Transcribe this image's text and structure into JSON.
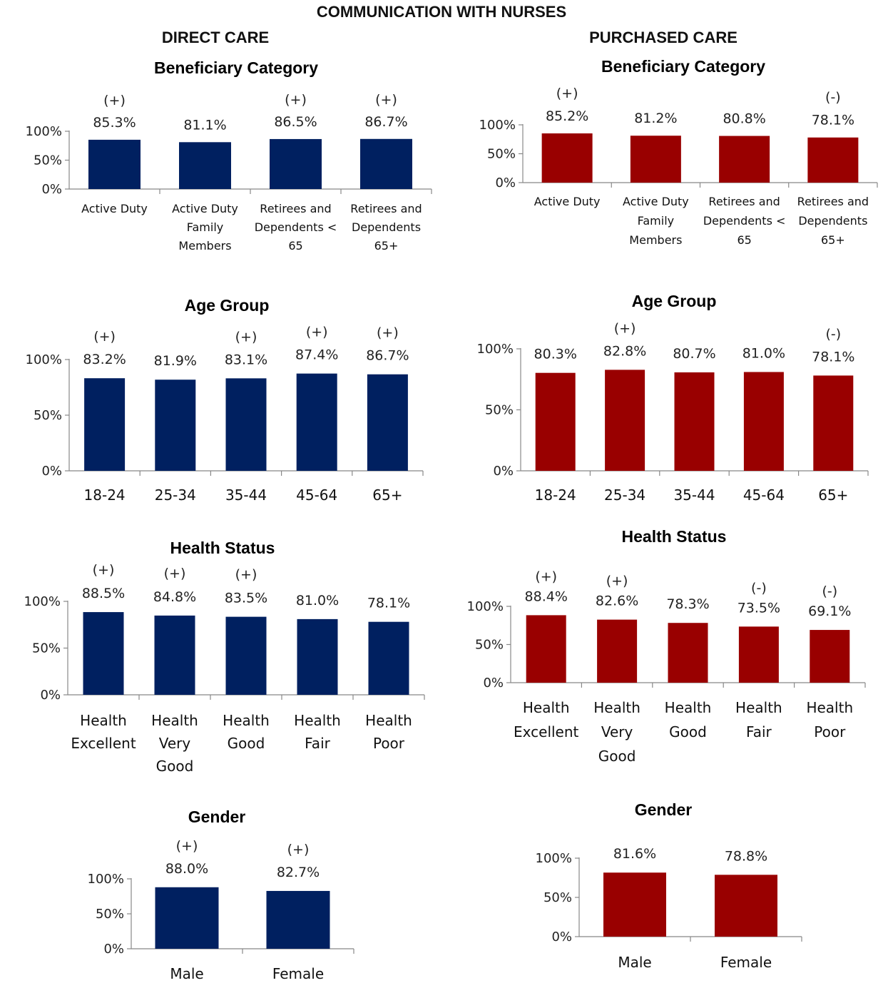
{
  "title": "COMMUNICATION WITH NURSES",
  "columns": [
    "DIRECT CARE",
    "PURCHASED CARE"
  ],
  "colors": {
    "direct": "#002060",
    "purchased": "#990000"
  },
  "chart_data": [
    {
      "type": "bar",
      "group": "DIRECT CARE",
      "title": "Beneficiary Category",
      "categories": [
        "Active Duty",
        "Active Duty Family Members",
        "Retirees and Dependents < 65",
        "Retirees and Dependents 65+"
      ],
      "values": [
        85.3,
        81.1,
        86.5,
        86.7
      ],
      "labels": [
        "85.3%",
        "81.1%",
        "86.5%",
        "86.7%"
      ],
      "significance": [
        "(+)",
        "",
        "(+)",
        "(+)"
      ],
      "yticks": [
        "100%",
        "50%",
        "0%"
      ],
      "ylim": [
        0,
        100
      ],
      "grid": false
    },
    {
      "type": "bar",
      "group": "PURCHASED CARE",
      "title": "Beneficiary Category",
      "categories": [
        "Active Duty",
        "Active Duty Family Members",
        "Retirees and Dependents < 65",
        "Retirees and Dependents 65+"
      ],
      "values": [
        85.2,
        81.2,
        80.8,
        78.1
      ],
      "labels": [
        "85.2%",
        "81.2%",
        "80.8%",
        "78.1%"
      ],
      "significance": [
        "(+)",
        "",
        "",
        "(-)"
      ],
      "yticks": [
        "100%",
        "50%",
        "0%"
      ],
      "ylim": [
        0,
        100
      ],
      "grid": false
    },
    {
      "type": "bar",
      "group": "DIRECT CARE",
      "title": "Age Group",
      "categories": [
        "18-24",
        "25-34",
        "35-44",
        "45-64",
        "65+"
      ],
      "values": [
        83.2,
        81.9,
        83.1,
        87.4,
        86.7
      ],
      "labels": [
        "83.2%",
        "81.9%",
        "83.1%",
        "87.4%",
        "86.7%"
      ],
      "significance": [
        "(+)",
        "",
        "(+)",
        "(+)",
        "(+)"
      ],
      "yticks": [
        "100%",
        "50%",
        "0%"
      ],
      "ylim": [
        0,
        100
      ],
      "grid": false
    },
    {
      "type": "bar",
      "group": "PURCHASED CARE",
      "title": "Age Group",
      "categories": [
        "18-24",
        "25-34",
        "35-44",
        "45-64",
        "65+"
      ],
      "values": [
        80.3,
        82.8,
        80.7,
        81.0,
        78.1
      ],
      "labels": [
        "80.3%",
        "82.8%",
        "80.7%",
        "81.0%",
        "78.1%"
      ],
      "significance": [
        "",
        "(+)",
        "",
        "",
        "(-)"
      ],
      "yticks": [
        "100%",
        "50%",
        "0%"
      ],
      "ylim": [
        0,
        100
      ],
      "grid": false
    },
    {
      "type": "bar",
      "group": "DIRECT CARE",
      "title": "Health Status",
      "categories": [
        "Health Excellent",
        "Health Very Good",
        "Health Good",
        "Health Fair",
        "Health Poor"
      ],
      "values": [
        88.5,
        84.8,
        83.5,
        81.0,
        78.1
      ],
      "labels": [
        "88.5%",
        "84.8%",
        "83.5%",
        "81.0%",
        "78.1%"
      ],
      "significance": [
        "(+)",
        "(+)",
        "(+)",
        "",
        ""
      ],
      "yticks": [
        "100%",
        "50%",
        "0%"
      ],
      "ylim": [
        0,
        100
      ],
      "grid": false
    },
    {
      "type": "bar",
      "group": "PURCHASED CARE",
      "title": "Health Status",
      "categories": [
        "Health Excellent",
        "Health Very Good",
        "Health Good",
        "Health Fair",
        "Health Poor"
      ],
      "values": [
        88.4,
        82.6,
        78.3,
        73.5,
        69.1
      ],
      "labels": [
        "88.4%",
        "82.6%",
        "78.3%",
        "73.5%",
        "69.1%"
      ],
      "significance": [
        "(+)",
        "(+)",
        "",
        "(-)",
        "(-)"
      ],
      "yticks": [
        "100%",
        "50%",
        "0%"
      ],
      "ylim": [
        0,
        100
      ],
      "grid": false
    },
    {
      "type": "bar",
      "group": "DIRECT CARE",
      "title": "Gender",
      "categories": [
        "Male",
        "Female"
      ],
      "values": [
        88.0,
        82.7
      ],
      "labels": [
        "88.0%",
        "82.7%"
      ],
      "significance": [
        "(+)",
        "(+)"
      ],
      "yticks": [
        "100%",
        "50%",
        "0%"
      ],
      "ylim": [
        0,
        100
      ],
      "grid": false
    },
    {
      "type": "bar",
      "group": "PURCHASED CARE",
      "title": "Gender",
      "categories": [
        "Male",
        "Female"
      ],
      "values": [
        81.6,
        78.8
      ],
      "labels": [
        "81.6%",
        "78.8%"
      ],
      "significance": [
        "",
        ""
      ],
      "yticks": [
        "100%",
        "50%",
        "0%"
      ],
      "ylim": [
        0,
        100
      ],
      "grid": false
    }
  ]
}
